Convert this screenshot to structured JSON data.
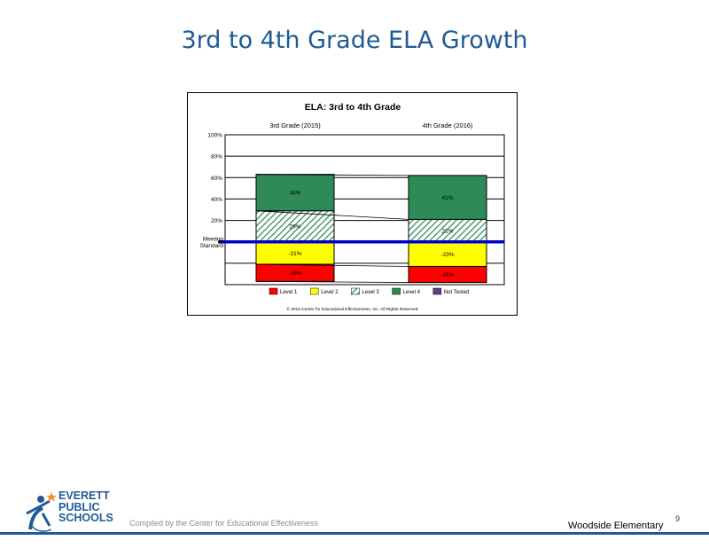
{
  "slide": {
    "title": "3rd to 4th Grade ELA Growth"
  },
  "chart_data": {
    "type": "bar",
    "stacked": true,
    "title": "ELA: 3rd to 4th Grade",
    "categories": [
      "3rd Grade (2015)",
      "4th Grade (2016)"
    ],
    "ylim": [
      -40,
      100
    ],
    "yticks": [
      0,
      20,
      40,
      60,
      80,
      100
    ],
    "ytick_labels": [
      "",
      "20%",
      "40%",
      "60%",
      "80%",
      "100%"
    ],
    "reference_label": "Meeting Standard",
    "series": [
      {
        "name": "Level 4",
        "color": "#2e8b57",
        "pattern": "solid",
        "values": [
          34,
          41
        ],
        "labels": [
          "34%",
          "41%"
        ]
      },
      {
        "name": "Level 3",
        "color": "#2e8b57",
        "pattern": "hatch",
        "values": [
          29,
          21
        ],
        "labels": [
          "29%",
          "21%"
        ]
      },
      {
        "name": "Level 2",
        "color": "#ffff00",
        "pattern": "solid",
        "values": [
          -21,
          -23
        ],
        "labels": [
          "-21%",
          "-23%"
        ]
      },
      {
        "name": "Level 1",
        "color": "#ff0000",
        "pattern": "solid",
        "values": [
          -16,
          -15
        ],
        "labels": [
          "-16%",
          "-15%"
        ]
      },
      {
        "name": "Not Tested",
        "color": "#5b3f7f",
        "pattern": "solid",
        "values": [
          0,
          0
        ],
        "labels": [
          "",
          ""
        ]
      }
    ],
    "legend_order": [
      "Level 1",
      "Level 2",
      "Level 3",
      "Level 4",
      "Not Tested"
    ],
    "legend_position": "bottom",
    "copyright": "© 2016 Center for Educational Effectiveness, Inc. All Rights Reserved."
  },
  "footer": {
    "logo_lines": [
      "EVERETT",
      "PUBLIC",
      "SCHOOLS"
    ],
    "credit": "Compiled by the Center for Educational Effectiveness",
    "school": "Woodside Elementary",
    "page_number": "9"
  }
}
